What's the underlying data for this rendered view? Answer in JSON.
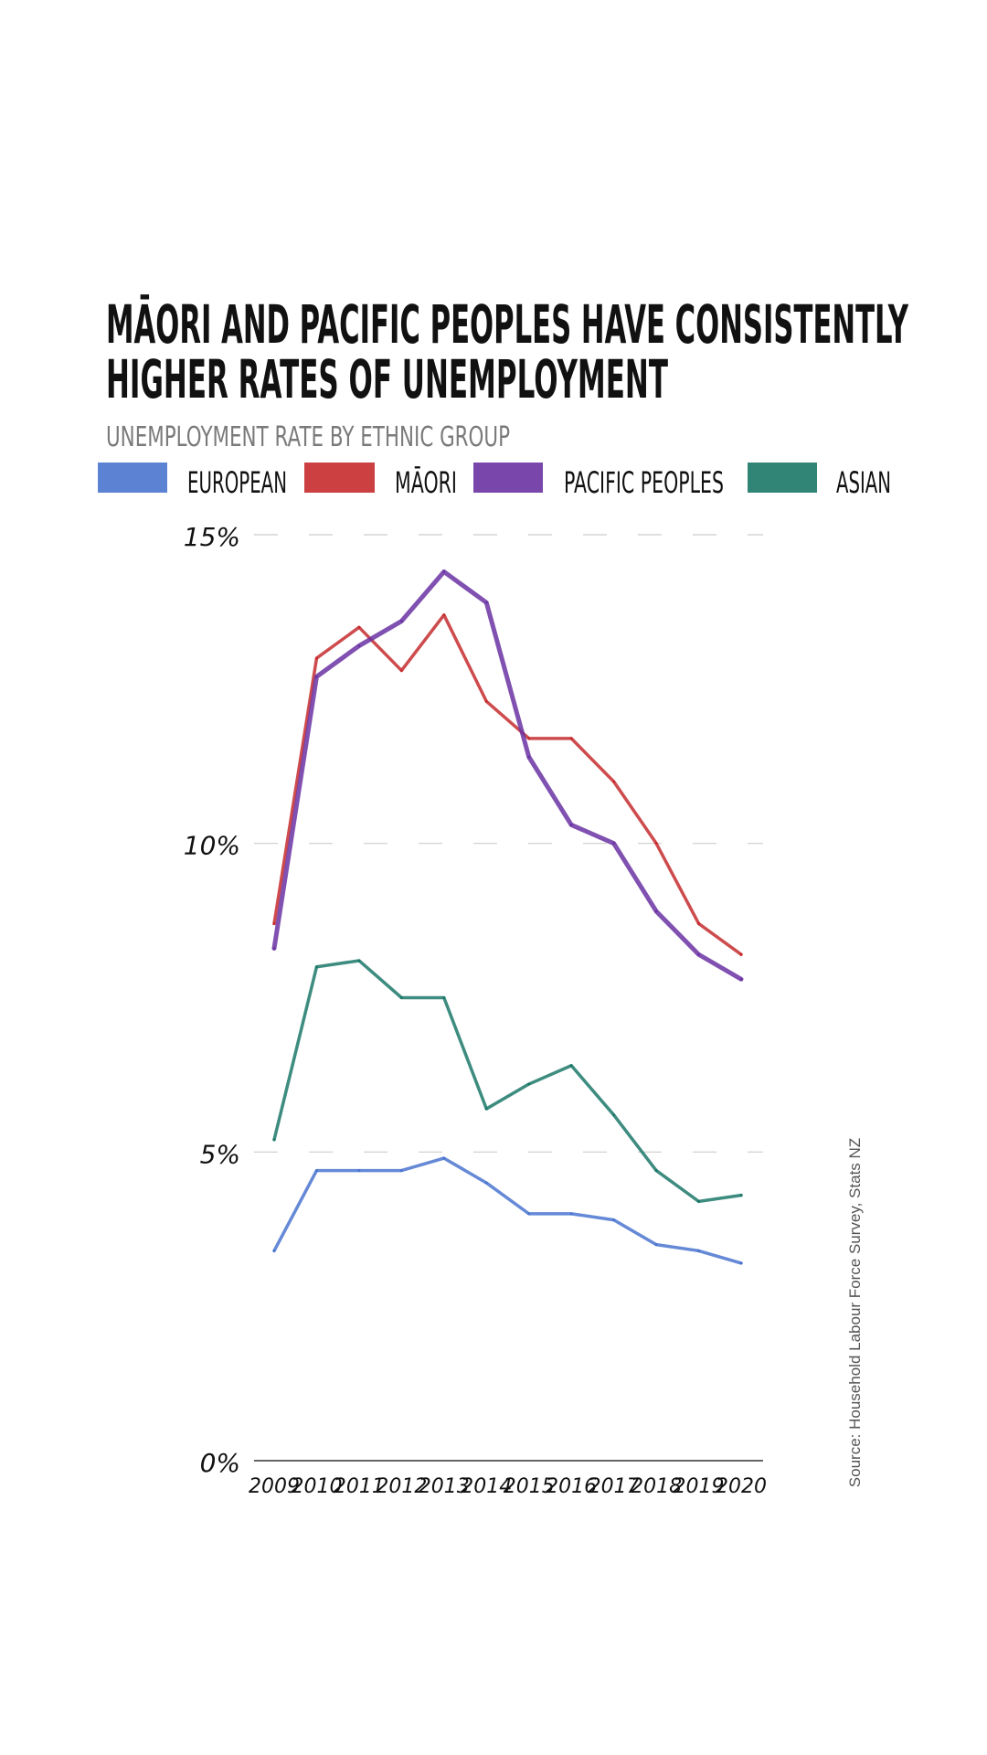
{
  "chart_data": {
    "type": "line",
    "title_lines": [
      "MĀORI AND PACIFIC PEOPLES HAVE CONSISTENTLY",
      "HIGHER RATES OF UNEMPLOYMENT"
    ],
    "subtitle": "UNEMPLOYMENT RATE BY ETHNIC GROUP",
    "x": [
      "2009",
      "2010",
      "2011",
      "2012",
      "2013",
      "2014",
      "2015",
      "2016",
      "2017",
      "2018",
      "2019",
      "2020"
    ],
    "ylim": [
      0,
      15
    ],
    "yticks": [
      0,
      5,
      10,
      15
    ],
    "ytick_labels": [
      "0%",
      "5%",
      "10%",
      "15%"
    ],
    "grid": true,
    "legend_position": "top",
    "series": [
      {
        "name": "EUROPEAN",
        "color": "#4a74cf",
        "values": [
          3.4,
          4.7,
          4.7,
          4.7,
          4.9,
          4.5,
          4.0,
          4.0,
          3.9,
          3.5,
          3.4,
          3.2
        ]
      },
      {
        "name": "MĀORI",
        "color": "#c62b2e",
        "values": [
          8.7,
          13.0,
          13.5,
          12.8,
          13.7,
          12.3,
          11.7,
          11.7,
          11.0,
          10.0,
          8.7,
          8.2
        ]
      },
      {
        "name": "PACIFIC PEOPLES",
        "color": "#6a33a3",
        "values": [
          8.3,
          12.7,
          13.2,
          13.6,
          14.4,
          13.9,
          11.4,
          10.3,
          10.0,
          8.9,
          8.2,
          7.8
        ]
      },
      {
        "name": "ASIAN",
        "color": "#1b7868",
        "values": [
          5.2,
          8.0,
          8.1,
          7.5,
          7.5,
          5.7,
          6.1,
          6.4,
          5.6,
          4.7,
          4.2,
          4.3
        ]
      }
    ],
    "source": "Source: Household Labour Force Survey, Stats NZ"
  }
}
